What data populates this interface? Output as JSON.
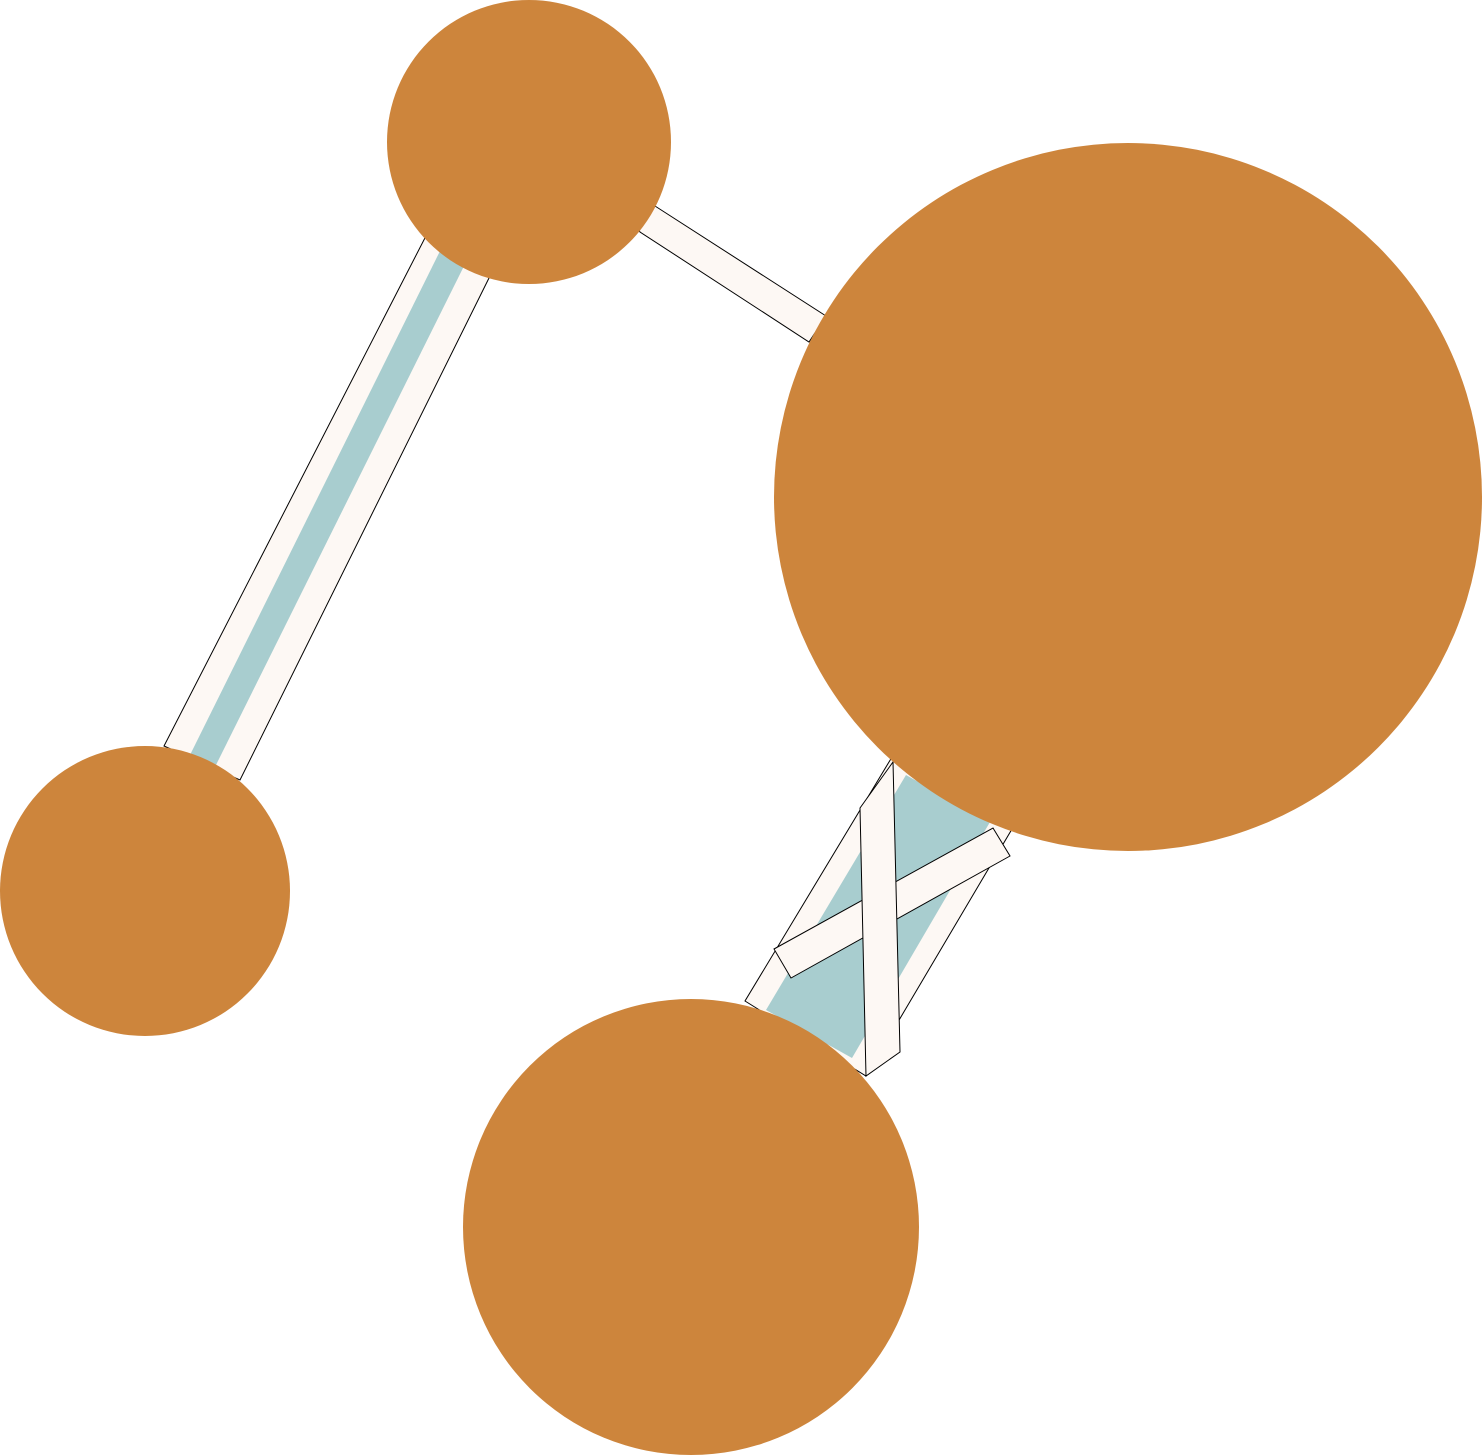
{
  "colors": {
    "background": "#ffffff",
    "node": "#cd853c",
    "band_light": "#fdf8f4",
    "band_teal": "#a8cdcf",
    "band_outline": "#000000"
  },
  "nodes": [
    {
      "id": "node-top",
      "size_rank": 4
    },
    {
      "id": "node-right",
      "size_rank": 1
    },
    {
      "id": "node-left",
      "size_rank": 5
    },
    {
      "id": "node-bottom",
      "size_rank": 2
    }
  ],
  "links": [
    {
      "id": "link-top-right",
      "from": "node-top",
      "to": "node-right",
      "style": "single light band"
    },
    {
      "id": "link-top-left",
      "from": "node-top",
      "to": "node-left",
      "style": "light band with teal core"
    },
    {
      "id": "link-right-bottom",
      "from": "node-right",
      "to": "node-bottom",
      "style": "teal band crossed by light bands"
    }
  ]
}
